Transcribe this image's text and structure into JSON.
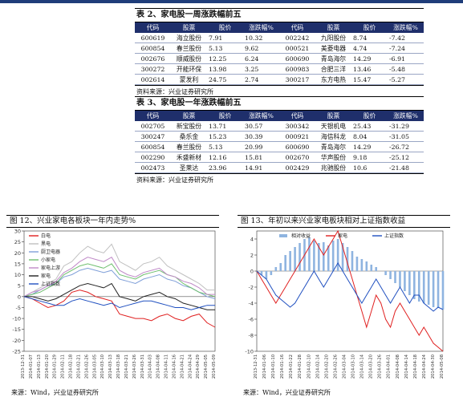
{
  "table2": {
    "title": "表 2、家电股一周涨跌幅前五",
    "headers": [
      "代码",
      "股票",
      "股价",
      "涨跌幅%",
      "代码",
      "股票",
      "股价",
      "涨跌幅%"
    ],
    "rows": [
      [
        "600619",
        "海立股份",
        "7.91",
        "10.32",
        "002242",
        "九阳股份",
        "8.74",
        "-7.42"
      ],
      [
        "600854",
        "春兰股份",
        "5.13",
        "9.62",
        "000521",
        "美菱电器",
        "4.74",
        "-7.24"
      ],
      [
        "002676",
        "顺威股份",
        "12.25",
        "6.24",
        "600690",
        "青岛海尔",
        "14.29",
        "-6.91"
      ],
      [
        "300272",
        "开能环保",
        "13.98",
        "3.25",
        "600983",
        "合肥三洋",
        "13.46",
        "-5.48"
      ],
      [
        "002614",
        "蒙发利",
        "24.75",
        "2.74",
        "300217",
        "东方电热",
        "15.47",
        "-5.27"
      ]
    ],
    "source": "资料来源：兴业证券研究所"
  },
  "table3": {
    "title": "表 3、家电股一年涨跌幅前五",
    "headers": [
      "代码",
      "股票",
      "股价",
      "涨跌幅%",
      "代码",
      "股票",
      "股价",
      "涨跌幅%"
    ],
    "rows": [
      [
        "002705",
        "新宝股份",
        "13.71",
        "30.57",
        "300342",
        "天银机电",
        "25.43",
        "-31.29"
      ],
      [
        "300247",
        "桑乐金",
        "15.23",
        "30.39",
        "000921",
        "海信科龙",
        "8.04",
        "-31.05"
      ],
      [
        "600854",
        "春兰股份",
        "5.13",
        "20.99",
        "600690",
        "青岛海尔",
        "14.29",
        "-26.72"
      ],
      [
        "002290",
        "禾盛新材",
        "12.16",
        "15.81",
        "002670",
        "华声股份",
        "9.18",
        "-25.12"
      ],
      [
        "002473",
        "圣莱达",
        "23.96",
        "14.91",
        "002429",
        "兆驰股份",
        "10.6",
        "-21.48"
      ]
    ],
    "source": "资料来源：兴业证券研究所"
  },
  "figure12": {
    "title": "图 12、兴业家电各板块一年内走势%",
    "source": "来源：Wind，兴业证券研究所"
  },
  "figure13": {
    "title": "图 13、年初以来兴业家电板块相对上证指数收益",
    "source": "来源：Wind，兴业证券研究所"
  },
  "chart_data": [
    {
      "type": "line",
      "yticks": [
        30,
        25,
        20,
        15,
        10,
        5,
        0,
        -5,
        -10,
        -15,
        -20,
        -25
      ],
      "ylim": [
        -25,
        30
      ],
      "xticks": [
        "2013-12-31",
        "2014-01-07",
        "2014-01-13",
        "2014-01-20",
        "2014-01-27",
        "2014-02-06",
        "2014-02-13",
        "2014-02-20",
        "2014-02-27",
        "2014-03-06",
        "2014-03-13",
        "2014-03-20",
        "2014-03-27",
        "2014-04-03",
        "2014-04-10",
        "2014-04-17",
        "2014-04-24",
        "2014-05-05",
        "2014-05-12"
      ],
      "xtick_labels": [
        "2013-12-31",
        "2014-01-07",
        "2014-01-13",
        "2014-01-20",
        "2014-01-29",
        "2014-02-11",
        "2014-02-18",
        "2014-02-21",
        "2014-02-26",
        "2014-03-05",
        "2014-03-10",
        "2014-03-13",
        "2014-03-18",
        "2014-03-21",
        "2014-03-26",
        "2014-03-31",
        "2014-04-03",
        "2014-04-08",
        "2014-04-11",
        "2014-04-16",
        "2014-04-21",
        "2014-04-24",
        "2014-04-29",
        "2014-05-05",
        "2014-05-09"
      ],
      "legend": "top-left",
      "series": [
        {
          "name": "白电",
          "color": "#e02020",
          "values": [
            0,
            -1,
            -3,
            -5,
            -4,
            -2,
            2,
            3,
            2,
            0,
            -1,
            -2,
            -8,
            -9,
            -10,
            -10,
            -11,
            -9,
            -8,
            -10,
            -11,
            -9,
            -8,
            -12,
            -14
          ]
        },
        {
          "name": "黑电",
          "color": "#c0c0c0",
          "values": [
            0,
            2,
            4,
            6,
            8,
            14,
            16,
            20,
            23,
            21,
            20,
            24,
            16,
            14,
            12,
            15,
            16,
            18,
            14,
            12,
            10,
            8,
            6,
            3,
            3
          ]
        },
        {
          "name": "厨卫电器",
          "color": "#7f9fd8",
          "values": [
            0,
            1,
            3,
            5,
            6,
            9,
            10,
            12,
            13,
            12,
            11,
            12,
            8,
            7,
            6,
            8,
            9,
            10,
            8,
            7,
            5,
            4,
            2,
            0,
            -1
          ]
        },
        {
          "name": "小家电",
          "color": "#6fbf6f",
          "values": [
            0,
            1,
            2,
            4,
            6,
            10,
            12,
            14,
            15,
            14,
            13,
            15,
            10,
            9,
            8,
            10,
            11,
            12,
            10,
            9,
            6,
            4,
            2,
            1,
            0
          ]
        },
        {
          "name": "家电上游",
          "color": "#c08ac8",
          "values": [
            0,
            2,
            3,
            5,
            7,
            11,
            13,
            16,
            18,
            17,
            16,
            18,
            12,
            10,
            9,
            11,
            12,
            13,
            10,
            9,
            7,
            6,
            4,
            1,
            1
          ]
        },
        {
          "name": "家电",
          "color": "#202020",
          "values": [
            0,
            0,
            -1,
            -2,
            -1,
            1,
            3,
            5,
            6,
            5,
            4,
            6,
            0,
            -1,
            -2,
            0,
            1,
            2,
            0,
            -1,
            -3,
            -4,
            -5,
            -6,
            -6
          ]
        },
        {
          "name": "上证指数",
          "color": "#2050c0",
          "values": [
            0,
            -1,
            -2,
            -3,
            -4,
            -4,
            -2,
            -1,
            -2,
            -3,
            -4,
            -3,
            -5,
            -4,
            -3,
            -2,
            -2,
            -3,
            -4,
            -5,
            -5,
            -6,
            -5,
            -4,
            -4
          ]
        }
      ]
    },
    {
      "type": "line",
      "yticks": [
        4,
        2,
        0,
        -2,
        -4,
        -6,
        -8,
        -10
      ],
      "ylim": [
        -10,
        5
      ],
      "xtick_labels": [
        "2013-12-31",
        "2014-01-06",
        "2014-01-10",
        "2014-01-16",
        "2014-01-22",
        "2014-01-28",
        "2014-02-10",
        "2014-02-14",
        "2014-02-20",
        "2014-02-26",
        "2014-03-04",
        "2014-03-10",
        "2014-03-14",
        "2014-03-20",
        "2014-03-26",
        "2014-04-01",
        "2014-04-08",
        "2014-04-14",
        "2014-04-18",
        "2014-04-24",
        "2014-04-30",
        "2014-05-08"
      ],
      "legend": "top",
      "series": [
        {
          "name": "相对收益",
          "color": "#8fb4e0",
          "kind": "bar",
          "values": [
            0,
            -0.5,
            -1,
            -0.5,
            0.5,
            1,
            2,
            2.5,
            3,
            3.5,
            4,
            4.2,
            3.8,
            3.5,
            3.6,
            3.2,
            3.8,
            4,
            3.5,
            3,
            2.5,
            1.8,
            1.5,
            1.2,
            0.8,
            0.5,
            0,
            -0.5,
            -1,
            -1.5,
            -2,
            -2.5,
            -3,
            -3.5,
            -3.8,
            -4,
            -4.2,
            -4.5,
            -4.6,
            -4.8
          ]
        },
        {
          "name": "家电",
          "color": "#e02020",
          "values": [
            0,
            -1,
            -2,
            -3,
            -4,
            -3,
            -2,
            -1,
            0,
            1,
            2,
            3,
            4,
            3,
            2,
            3,
            4,
            5,
            3,
            1,
            -1,
            -3,
            -5,
            -7,
            -5,
            -3,
            -4,
            -6,
            -7,
            -5,
            -4,
            -5,
            -6,
            -7,
            -8,
            -7,
            -8,
            -9,
            -9.5,
            -10
          ]
        },
        {
          "name": "上证指数",
          "color": "#2050c0",
          "values": [
            0,
            -0.5,
            -1,
            -2,
            -3,
            -3.5,
            -4,
            -4.5,
            -4,
            -3,
            -2,
            -1,
            0,
            -1,
            -2,
            -1,
            0,
            1,
            0,
            -1,
            -2,
            -3,
            -4,
            -3,
            -2,
            -1,
            -2,
            -3,
            -4,
            -3,
            -2,
            -3,
            -4,
            -3,
            -3,
            -4,
            -4.5,
            -5,
            -4.5,
            -4.8
          ]
        }
      ]
    }
  ]
}
